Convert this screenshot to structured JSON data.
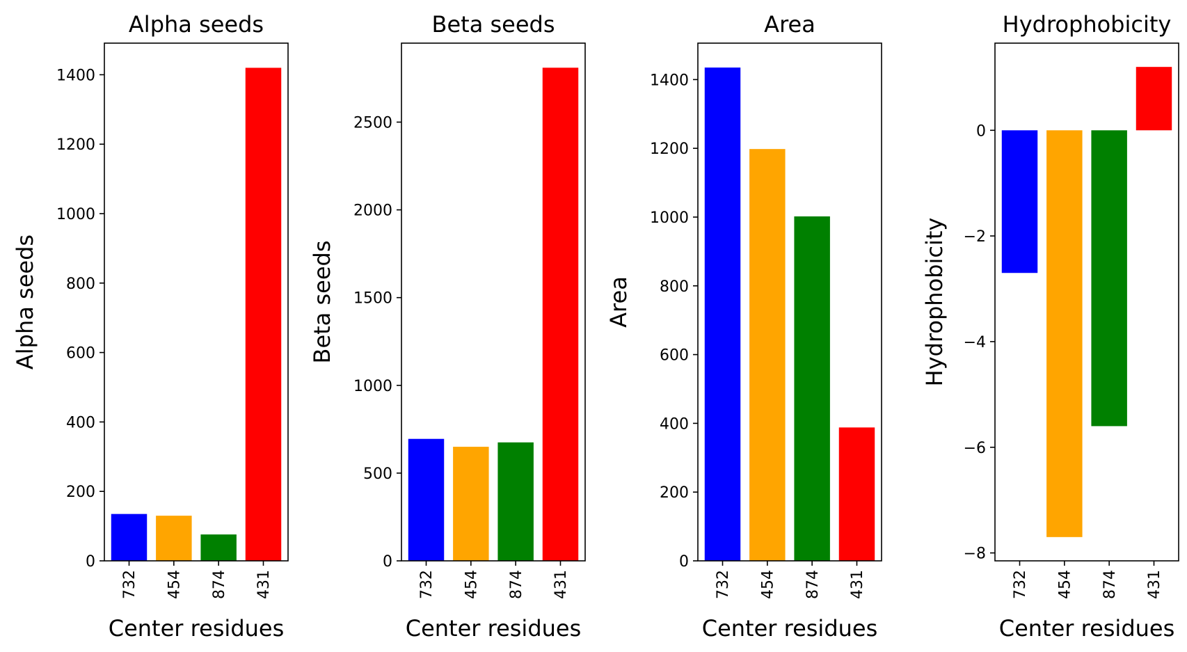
{
  "chart_data": [
    {
      "type": "bar",
      "title": "Alpha seeds",
      "xlabel": "Center residues",
      "ylabel": "Alpha seeds",
      "categories": [
        "732",
        "454",
        "874",
        "431"
      ],
      "values": [
        135,
        130,
        76,
        1420
      ],
      "colors": [
        "#0000ff",
        "#ffa500",
        "#008000",
        "#ff0000"
      ],
      "ylim": [
        0,
        1491
      ],
      "yticks": [
        0,
        200,
        400,
        600,
        800,
        1000,
        1200,
        1400
      ],
      "ytick_labels": [
        "0",
        "200",
        "400",
        "600",
        "800",
        "1000",
        "1200",
        "1400"
      ],
      "grid": false
    },
    {
      "type": "bar",
      "title": "Beta seeds",
      "xlabel": "Center residues",
      "ylabel": "Beta seeds",
      "categories": [
        "732",
        "454",
        "874",
        "431"
      ],
      "values": [
        695,
        650,
        675,
        2810
      ],
      "colors": [
        "#0000ff",
        "#ffa500",
        "#008000",
        "#ff0000"
      ],
      "ylim": [
        0,
        2950
      ],
      "yticks": [
        0,
        500,
        1000,
        1500,
        2000,
        2500
      ],
      "ytick_labels": [
        "0",
        "500",
        "1000",
        "1500",
        "2000",
        "2500"
      ],
      "grid": false
    },
    {
      "type": "bar",
      "title": "Area",
      "xlabel": "Center residues",
      "ylabel": "Area",
      "categories": [
        "732",
        "454",
        "874",
        "431"
      ],
      "values": [
        1435,
        1198,
        1002,
        388
      ],
      "colors": [
        "#0000ff",
        "#ffa500",
        "#008000",
        "#ff0000"
      ],
      "ylim": [
        0,
        1506
      ],
      "yticks": [
        0,
        200,
        400,
        600,
        800,
        1000,
        1200,
        1400
      ],
      "ytick_labels": [
        "0",
        "200",
        "400",
        "600",
        "800",
        "1000",
        "1200",
        "1400"
      ],
      "grid": false
    },
    {
      "type": "bar",
      "title": "Hydrophobicity",
      "xlabel": "Center residues",
      "ylabel": "Hydrophobicity",
      "categories": [
        "732",
        "454",
        "874",
        "431"
      ],
      "values": [
        -2.7,
        -7.7,
        -5.6,
        1.2
      ],
      "colors": [
        "#0000ff",
        "#ffa500",
        "#008000",
        "#ff0000"
      ],
      "ylim": [
        -8.15,
        1.65
      ],
      "yticks": [
        -8,
        -6,
        -4,
        -2,
        0
      ],
      "ytick_labels": [
        "−8",
        "−6",
        "−4",
        "−2",
        "0"
      ],
      "grid": false
    }
  ]
}
